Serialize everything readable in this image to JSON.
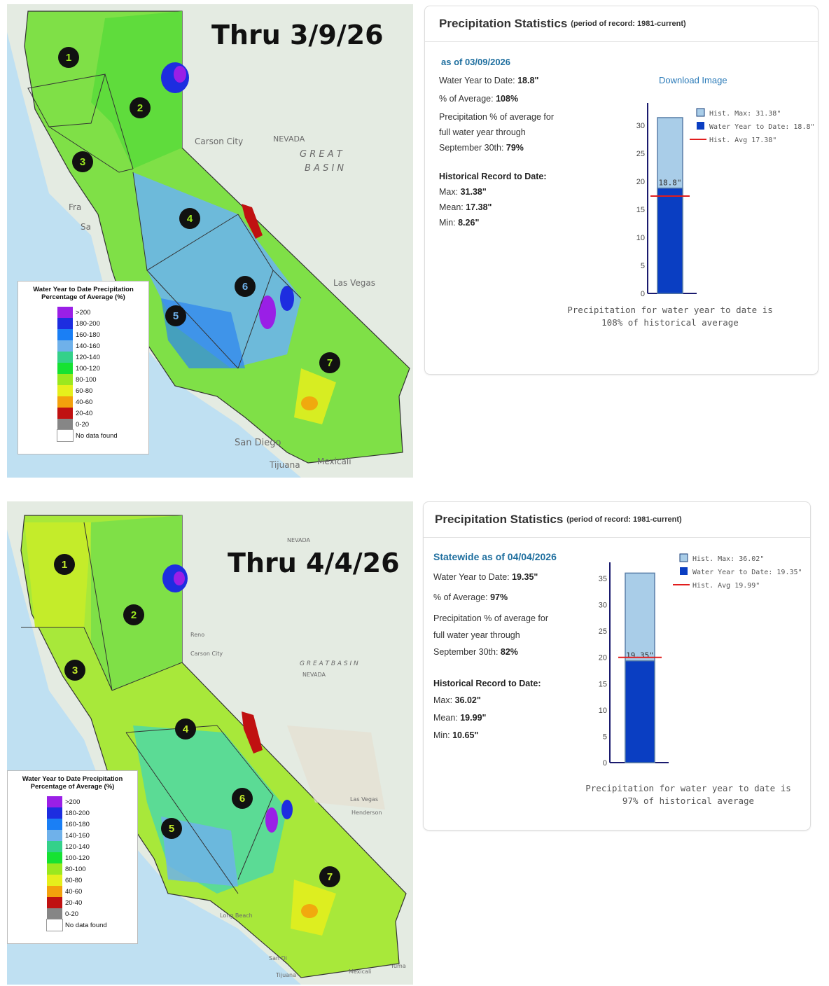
{
  "legend": {
    "title": "Water Year to Date Precipitation Percentage of Average (%)",
    "items": [
      {
        "label": ">200",
        "color": "#9a1fe6"
      },
      {
        "label": "180-200",
        "color": "#1d2de0"
      },
      {
        "label": "160-180",
        "color": "#1a7ff5"
      },
      {
        "label": "140-160",
        "color": "#6fb1ea"
      },
      {
        "label": "120-140",
        "color": "#34d18a"
      },
      {
        "label": "100-120",
        "color": "#16e232"
      },
      {
        "label": "80-100",
        "color": "#9be81f"
      },
      {
        "label": "60-80",
        "color": "#e6ef1c"
      },
      {
        "label": "40-60",
        "color": "#f3a10c"
      },
      {
        "label": "20-40",
        "color": "#c01111"
      },
      {
        "label": "0-20",
        "color": "#868686"
      },
      {
        "label": "No data found",
        "color": "#ffffff"
      }
    ]
  },
  "regions": [
    "1",
    "2",
    "3",
    "4",
    "5",
    "6",
    "7"
  ],
  "top": {
    "heading": "Thru 3/9/26",
    "places": {
      "carson": "Carson City",
      "nevada": "NEVADA",
      "great": "G R E A T",
      "basin": "B A S I N",
      "lasvegas": "Las Vegas",
      "sandiego": "San Diego",
      "tijuana": "Tijuana",
      "mexicali": "Mexicali",
      "fra": "Fra",
      "sa": "Sa"
    },
    "panel": {
      "title": "Precipitation Statistics",
      "subtitle": "(period of record: 1981-current)",
      "as_of": "as of 03/09/2026",
      "wytd_label": "Water Year to Date:",
      "wytd_value": "18.8\"",
      "pct_label": "% of Average:",
      "pct_value": "108%",
      "full_line1": "Precipitation % of average for",
      "full_line2": "full water year through",
      "full_line3": "September 30th:",
      "full_value": "79%",
      "hist_heading": "Historical Record to Date:",
      "max_label": "Max:",
      "max_value": "31.38\"",
      "mean_label": "Mean:",
      "mean_value": "17.38\"",
      "min_label": "Min:",
      "min_value": "8.26\"",
      "download": "Download Image",
      "caption_line1": "Precipitation for water year to date is",
      "caption_line2": "108% of historical average"
    }
  },
  "bottom": {
    "heading": "Thru 4/4/26",
    "places": {
      "nevada": "NEVADA",
      "reno": "Reno",
      "carson": "Carson City",
      "greatbasin": "G R E A T   B A S I N",
      "nevada2": "NEVADA",
      "lasvegas": "Las Vegas",
      "henderson": "Henderson",
      "sandi": "San Di",
      "tijuana": "Tijuana",
      "mexicali": "Mexicali",
      "longbeach": "Long Beach",
      "yuma": "Yuma"
    },
    "panel": {
      "title": "Precipitation Statistics",
      "subtitle": "(period of record: 1981-current)",
      "as_of": "Statewide as of  04/04/2026",
      "wytd_label": "Water Year to Date:",
      "wytd_value": "19.35\"",
      "pct_label": "% of Average:",
      "pct_value": "97%",
      "full_line1": "Precipitation % of average for",
      "full_line2": "full water year through",
      "full_line3": "September 30th:",
      "full_value": "82%",
      "hist_heading": "Historical Record to Date:",
      "max_label": "Max:",
      "max_value": "36.02\"",
      "mean_label": "Mean:",
      "mean_value": "19.99\"",
      "min_label": "Min:",
      "min_value": "10.65\"",
      "caption_line1": "Precipitation for water year to date is",
      "caption_line2": "97% of historical average"
    }
  },
  "chart_data": [
    {
      "type": "bar",
      "title": "",
      "ylim": [
        0,
        33
      ],
      "yticks": [
        0,
        5,
        10,
        15,
        20,
        25,
        30
      ],
      "series": [
        {
          "name": "Hist. Max: 31.38\"",
          "values": [
            31.38
          ],
          "color": "#a9cde8"
        },
        {
          "name": "Water Year to Date: 18.8\"",
          "values": [
            18.8
          ],
          "color": "#0a3ec2"
        }
      ],
      "hist_avg": {
        "name": "Hist. Avg 17.38\"",
        "value": 17.38,
        "color": "#e11d1d"
      },
      "bar_label": "18.8\"",
      "legend_position": "top-right"
    },
    {
      "type": "bar",
      "title": "",
      "ylim": [
        0,
        37
      ],
      "yticks": [
        0,
        5,
        10,
        15,
        20,
        25,
        30,
        35
      ],
      "series": [
        {
          "name": "Hist. Max: 36.02\"",
          "values": [
            36.02
          ],
          "color": "#a9cde8"
        },
        {
          "name": "Water Year to Date: 19.35\"",
          "values": [
            19.35
          ],
          "color": "#0a3ec2"
        }
      ],
      "hist_avg": {
        "name": "Hist. Avg 19.99\"",
        "value": 19.99,
        "color": "#e11d1d"
      },
      "bar_label": "19.35\"",
      "legend_position": "top-right"
    }
  ]
}
